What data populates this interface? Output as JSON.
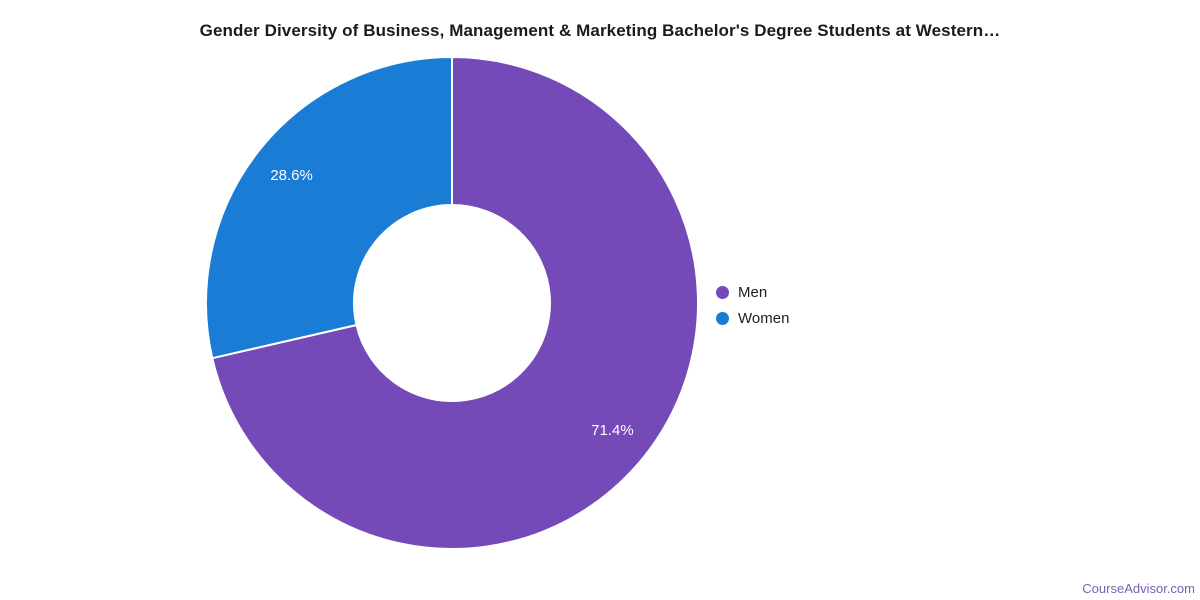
{
  "page": {
    "background_color": "#ffffff"
  },
  "chart_data": {
    "type": "pie",
    "subtype": "donut",
    "title": "Gender Diversity of Business, Management & Marketing Bachelor's Degree Students at Western…",
    "categories": [
      "Men",
      "Women"
    ],
    "series": [
      {
        "name": "Men",
        "value": 71.4,
        "label": "71.4%",
        "color": "#7449B8"
      },
      {
        "name": "Women",
        "value": 28.6,
        "label": "28.6%",
        "color": "#1B7CD6"
      }
    ],
    "start_angle": "top",
    "direction": "clockwise",
    "inner_radius_ratio": 0.4,
    "slice_label_color": "#ffffff",
    "slice_border_color": "#ffffff",
    "legend_position": "right",
    "legend_text_color": "#212121",
    "title_color": "#1b1b1b"
  },
  "footer": {
    "attribution": "CourseAdvisor.com",
    "color": "#7A5FB2"
  }
}
